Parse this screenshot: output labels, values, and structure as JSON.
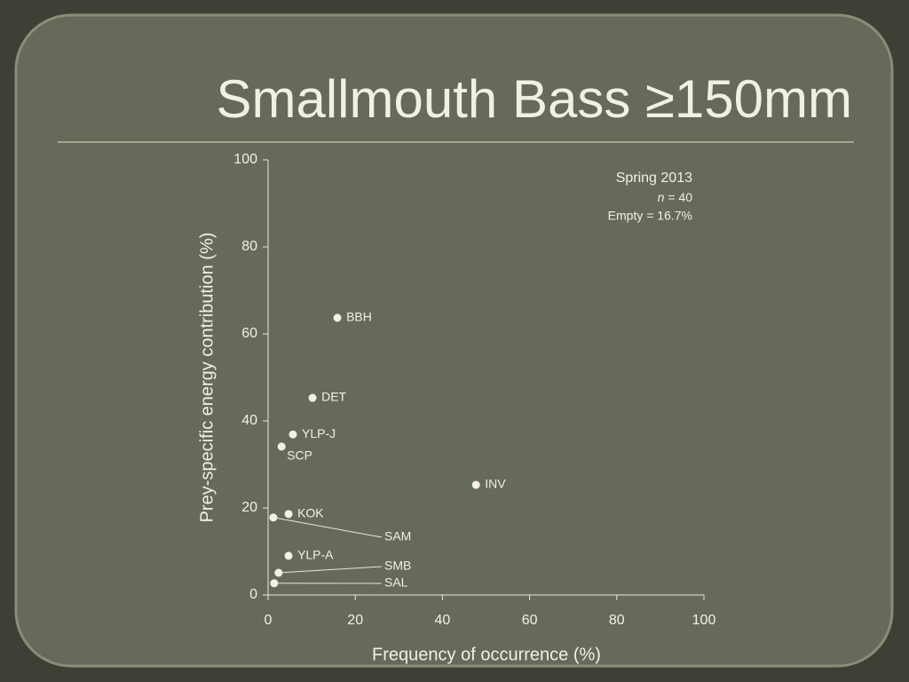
{
  "chart_data": {
    "type": "scatter",
    "title": "Smallmouth Bass ≥150mm",
    "x_label": "Frequency of occurrence (%)",
    "y_label": "Prey-specific energy contribution (%)",
    "annotation": {
      "season": "Spring 2013",
      "n_symbol": "n",
      "n_value": "= 40",
      "empty": "Empty = 16.7%"
    },
    "series": [
      {
        "color": "#f4f1e2",
        "labels": [
          "BBH",
          "DET",
          "YLP-J",
          "SCP",
          "INV",
          "KOK",
          "SAM",
          "YLP-A",
          "SMB",
          "SAL"
        ],
        "x": [
          15.9,
          10.2,
          5.7,
          3.1,
          47.7,
          4.7,
          1.2,
          4.7,
          2.4,
          1.4
        ],
        "values": [
          63.7,
          45.3,
          36.9,
          34.1,
          25.3,
          18.6,
          17.8,
          9.0,
          5.1,
          2.7
        ]
      }
    ],
    "xlim": [
      0,
      100
    ],
    "xticks": [
      0,
      20,
      40,
      60,
      80,
      100
    ],
    "ylim": [
      0,
      100
    ],
    "yticks": [
      0,
      20,
      40,
      60,
      80,
      100
    ],
    "grid": false
  }
}
